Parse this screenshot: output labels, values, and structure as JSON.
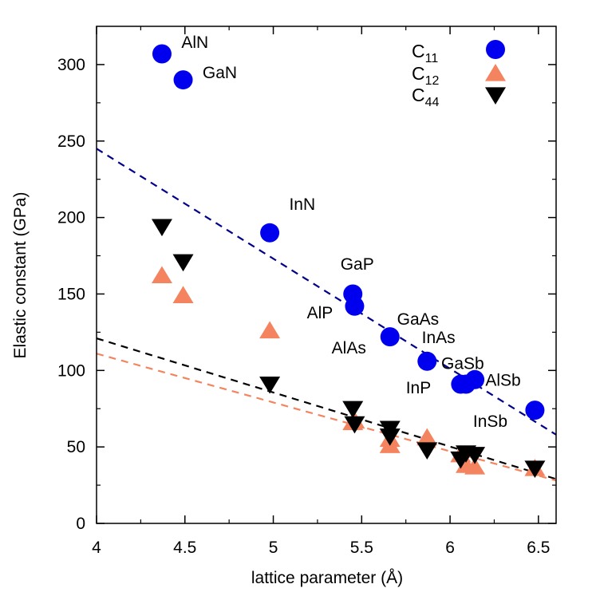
{
  "chart_data": {
    "type": "scatter",
    "xlabel": "lattice parameter (Å)",
    "ylabel": "Elastic constant (GPa)",
    "xlim": [
      4.0,
      6.6
    ],
    "ylim": [
      0,
      325
    ],
    "xticks": [
      4,
      4.5,
      5,
      5.5,
      6,
      6.5
    ],
    "xtick_labels": [
      "4",
      "4.5",
      "5",
      "5.5",
      "6",
      "6.5"
    ],
    "yticks": [
      0,
      50,
      100,
      150,
      200,
      250,
      300
    ],
    "ytick_labels": [
      "0",
      "50",
      "100",
      "150",
      "200",
      "250",
      "300"
    ],
    "grid": false,
    "legend_position": "top-right",
    "series": [
      {
        "name": "C11",
        "name_main": "C",
        "name_sub": "11",
        "marker": "circle",
        "color": "#0000ee",
        "points": [
          {
            "x": 4.37,
            "y": 307
          },
          {
            "x": 4.49,
            "y": 290
          },
          {
            "x": 4.98,
            "y": 190
          },
          {
            "x": 5.45,
            "y": 150
          },
          {
            "x": 5.46,
            "y": 142
          },
          {
            "x": 5.66,
            "y": 122
          },
          {
            "x": 5.87,
            "y": 106
          },
          {
            "x": 6.06,
            "y": 91
          },
          {
            "x": 6.09,
            "y": 91
          },
          {
            "x": 6.14,
            "y": 94
          },
          {
            "x": 6.48,
            "y": 74
          }
        ]
      },
      {
        "name": "C12",
        "name_main": "C",
        "name_sub": "12",
        "marker": "triangle-up",
        "color": "#f4845f",
        "points": [
          {
            "x": 4.37,
            "y": 162
          },
          {
            "x": 4.49,
            "y": 149
          },
          {
            "x": 4.98,
            "y": 126
          },
          {
            "x": 5.45,
            "y": 66
          },
          {
            "x": 5.46,
            "y": 67
          },
          {
            "x": 5.66,
            "y": 51
          },
          {
            "x": 5.66,
            "y": 55
          },
          {
            "x": 5.87,
            "y": 56
          },
          {
            "x": 6.06,
            "y": 45
          },
          {
            "x": 6.09,
            "y": 38
          },
          {
            "x": 6.14,
            "y": 37
          },
          {
            "x": 6.48,
            "y": 36
          }
        ]
      },
      {
        "name": "C44",
        "name_main": "C",
        "name_sub": "44",
        "marker": "triangle-down",
        "color": "#000000",
        "points": [
          {
            "x": 4.37,
            "y": 194
          },
          {
            "x": 4.49,
            "y": 171
          },
          {
            "x": 4.98,
            "y": 91
          },
          {
            "x": 5.45,
            "y": 75
          },
          {
            "x": 5.46,
            "y": 65
          },
          {
            "x": 5.66,
            "y": 62
          },
          {
            "x": 5.66,
            "y": 57
          },
          {
            "x": 5.87,
            "y": 48
          },
          {
            "x": 6.06,
            "y": 42
          },
          {
            "x": 6.09,
            "y": 46
          },
          {
            "x": 6.14,
            "y": 45
          },
          {
            "x": 6.48,
            "y": 36
          }
        ]
      }
    ],
    "fits": [
      {
        "series": "C11",
        "color": "#00008b",
        "x": [
          4.0,
          6.6
        ],
        "y": [
          245,
          58
        ]
      },
      {
        "series": "C44",
        "color": "#000000",
        "x": [
          4.0,
          6.6
        ],
        "y": [
          121,
          29
        ]
      },
      {
        "series": "C12",
        "color": "#f4845f",
        "x": [
          4.0,
          6.6
        ],
        "y": [
          111,
          28
        ]
      }
    ],
    "annotations": [
      {
        "text": "AlN",
        "x": 4.48,
        "y": 311
      },
      {
        "text": "GaN",
        "x": 4.6,
        "y": 291
      },
      {
        "text": "InN",
        "x": 5.09,
        "y": 205
      },
      {
        "text": "GaP",
        "x": 5.38,
        "y": 166
      },
      {
        "text": "AlP",
        "x": 5.19,
        "y": 134
      },
      {
        "text": "GaAs",
        "x": 5.7,
        "y": 130
      },
      {
        "text": "AlAs",
        "x": 5.33,
        "y": 111
      },
      {
        "text": "InAs",
        "x": 5.84,
        "y": 118
      },
      {
        "text": "GaSb",
        "x": 5.95,
        "y": 101
      },
      {
        "text": "InP",
        "x": 5.75,
        "y": 85
      },
      {
        "text": "AlSb",
        "x": 6.2,
        "y": 90
      },
      {
        "text": "InSb",
        "x": 6.13,
        "y": 63
      }
    ]
  }
}
